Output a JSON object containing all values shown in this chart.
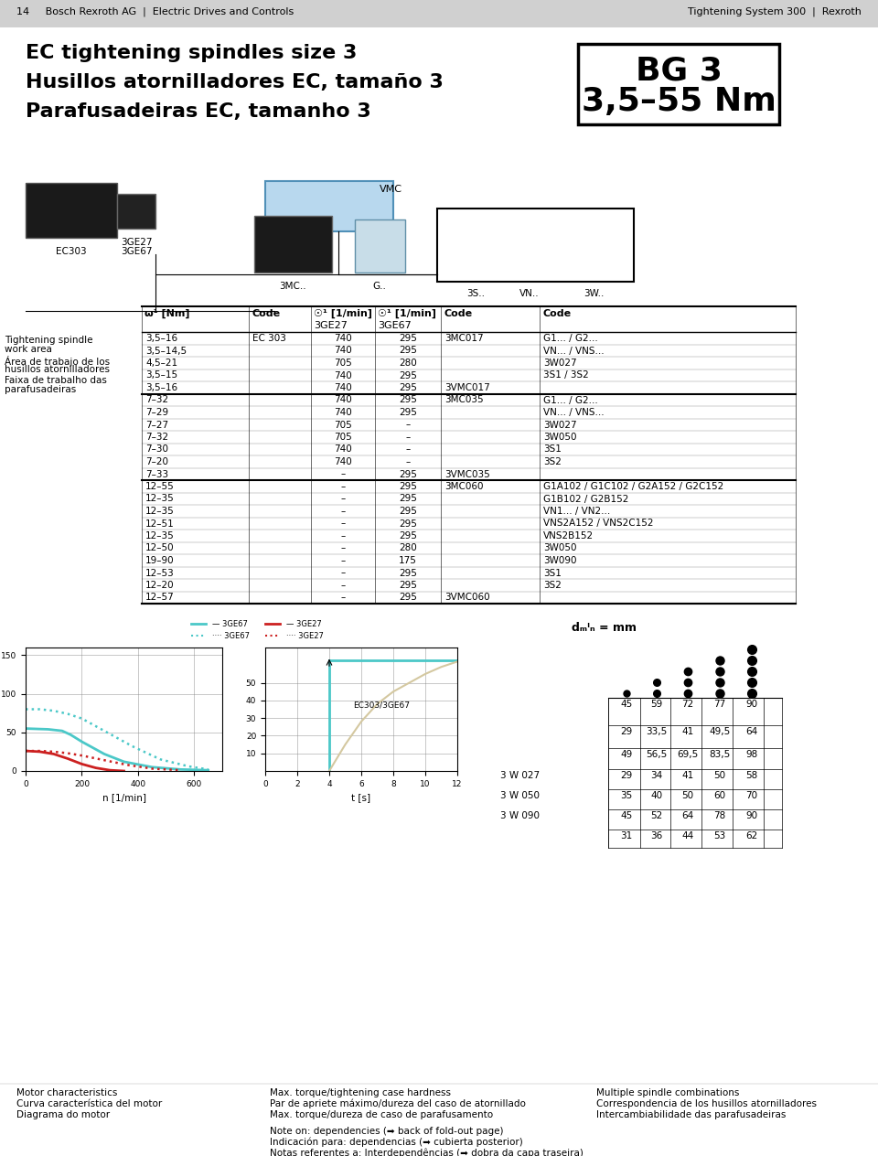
{
  "page_bg": "#ffffff",
  "header_bg": "#d4d4d4",
  "header_text_left": "14     Bosch Rexroth AG  |  Electric Drives and Controls",
  "header_text_right": "Tightening System 300  |  Rexroth",
  "title_lines": [
    "EC tightening spindles size 3",
    "Husillos atornilladores EC, tamaño 3",
    "Parafusadeiras EC, tamanho 3"
  ],
  "bg_label_line1": "BG 3",
  "bg_label_line2": "3,5–55 Nm",
  "left_label_lines": [
    "Tightening spindle",
    "work area",
    "Área de trabajo de los",
    "husillos atornilladores",
    "Faixa de trabalho das",
    "parafusadeiras"
  ],
  "header_cols": [
    "ω¹ [Nm]",
    "Code",
    "☉¹ [1/min]",
    "☉¹ [1/min]",
    "Code",
    "Code"
  ],
  "sub_header": [
    "",
    "",
    "3GE27",
    "3GE67",
    "",
    ""
  ],
  "table_rows": [
    [
      "3,5–16",
      "EC 303",
      "740",
      "295",
      "3MC017",
      "G1... / G2..."
    ],
    [
      "3,5–14,5",
      "",
      "740",
      "295",
      "",
      "VN... / VNS..."
    ],
    [
      "4,5–21",
      "",
      "705",
      "280",
      "",
      "3W027"
    ],
    [
      "3,5–15",
      "",
      "740",
      "295",
      "",
      "3S1 / 3S2"
    ],
    [
      "3,5–16",
      "",
      "740",
      "295",
      "3VMC017",
      ""
    ],
    [
      "7–32",
      "",
      "740",
      "295",
      "3MC035",
      "G1... / G2..."
    ],
    [
      "7–29",
      "",
      "740",
      "295",
      "",
      "VN... / VNS..."
    ],
    [
      "7–27",
      "",
      "705",
      "–",
      "",
      "3W027"
    ],
    [
      "7–32",
      "",
      "705",
      "–",
      "",
      "3W050"
    ],
    [
      "7–30",
      "",
      "740",
      "–",
      "",
      "3S1"
    ],
    [
      "7–20",
      "",
      "740",
      "–",
      "",
      "3S2"
    ],
    [
      "7–33",
      "",
      "–",
      "295",
      "3VMC035",
      ""
    ],
    [
      "12–55",
      "",
      "–",
      "295",
      "3MC060",
      "G1A102 / G1C102 / G2A152 / G2C152"
    ],
    [
      "12–35",
      "",
      "–",
      "295",
      "",
      "G1B102 / G2B152"
    ],
    [
      "12–35",
      "",
      "–",
      "295",
      "",
      "VN1... / VN2..."
    ],
    [
      "12–51",
      "",
      "–",
      "295",
      "",
      "VNS2A152 / VNS2C152"
    ],
    [
      "12–35",
      "",
      "–",
      "295",
      "",
      "VNS2B152"
    ],
    [
      "12–50",
      "",
      "–",
      "280",
      "",
      "3W050"
    ],
    [
      "19–90",
      "",
      "–",
      "175",
      "",
      "3W090"
    ],
    [
      "12–53",
      "",
      "–",
      "295",
      "",
      "3S1"
    ],
    [
      "12–20",
      "",
      "–",
      "295",
      "",
      "3S2"
    ],
    [
      "12–57",
      "",
      "–",
      "295",
      "3VMC060",
      ""
    ]
  ],
  "section_separators": [
    4,
    11,
    21
  ],
  "dmin_header": "dₘᴵₙ = mm",
  "dmin_col_vals": [
    "45",
    "59",
    "72",
    "77",
    "90"
  ],
  "dmin_rows": [
    [
      "45",
      "59",
      "72",
      "77",
      "90"
    ],
    [
      "29",
      "33,5",
      "41",
      "49,5",
      "64"
    ],
    [
      "49",
      "56,5",
      "69,5",
      "83,5",
      "98"
    ],
    [
      "29",
      "34",
      "41",
      "50",
      "58"
    ],
    [
      "35",
      "40",
      "50",
      "60",
      "70"
    ],
    [
      "45",
      "52",
      "64",
      "78",
      "90"
    ],
    [
      "31",
      "36",
      "44",
      "53",
      "62"
    ]
  ],
  "dmin_row_labels": [
    "",
    "",
    "",
    "3 W 027",
    "3 W 050",
    "3 W 090",
    ""
  ],
  "footer_left": [
    "Motor characteristics",
    "Curva característica del motor",
    "Diagrama do motor"
  ],
  "footer_mid": [
    "Max. torque/tightening case hardness",
    "Par de apriete máximo/dureza del caso de atornillado",
    "Max. torque/dureza de caso de parafusamento"
  ],
  "footer_mid2": [
    "Note on: dependencies (➡ back of fold-out page)",
    "Indicación para: dependencias (➡ cubierta posterior)",
    "Notas referentes a: Interdependências (➡ dobra da capa traseira)"
  ],
  "footer_right": [
    "Multiple spindle combinations",
    "Correspondencia de los husillos atornilladores",
    "Intercambiabilidade das parafusadeiras"
  ],
  "color_3ge67_solid": "#4bc8c8",
  "color_3ge67_dot": "#4bc8c8",
  "color_3ge27_solid": "#cc2020",
  "color_3ge27_dot": "#cc2020",
  "color_right_teal": "#4bc8c8",
  "color_right_tan": "#d4c8a0"
}
